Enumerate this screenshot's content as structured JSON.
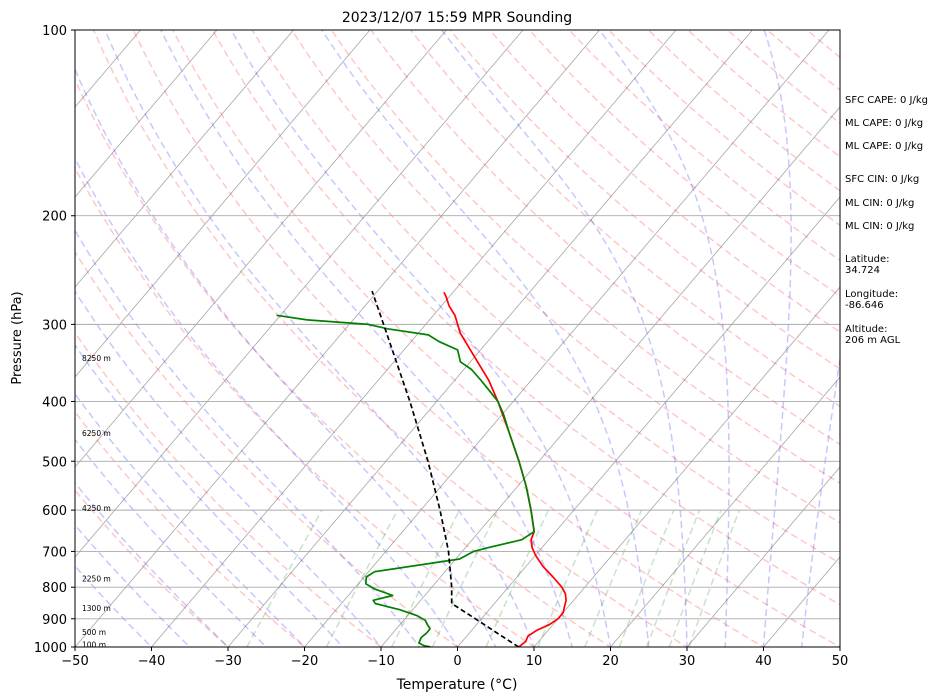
{
  "chart_data": {
    "type": "line",
    "title": "2023/12/07 15:59 MPR Sounding",
    "xlabel": "Temperature (°C)",
    "ylabel": "Pressure (hPa)",
    "xlim": [
      -50,
      50
    ],
    "ylim": [
      1000,
      100
    ],
    "y_scale": "log",
    "skew": true,
    "grid": true,
    "x_ticks": [
      -50,
      -40,
      -30,
      -20,
      -10,
      0,
      10,
      20,
      30,
      40,
      50
    ],
    "x_tick_labels": [
      "−50",
      "−40",
      "−30",
      "−20",
      "−10",
      "0",
      "10",
      "20",
      "30",
      "40",
      "50"
    ],
    "y_ticks": [
      1000,
      900,
      800,
      700,
      600,
      500,
      400,
      300,
      200,
      100
    ],
    "y_tick_labels": [
      "1000",
      "900",
      "800",
      "700",
      "600",
      "500",
      "400",
      "300",
      "200",
      "100"
    ],
    "series": [
      {
        "role": "temperature",
        "color": "#ff0000",
        "points": [
          [
            1000,
            8.0
          ],
          [
            980,
            8.3
          ],
          [
            960,
            8.0
          ],
          [
            940,
            8.5
          ],
          [
            920,
            9.5
          ],
          [
            900,
            10.0
          ],
          [
            880,
            10.0
          ],
          [
            860,
            9.5
          ],
          [
            840,
            9.0
          ],
          [
            820,
            8.2
          ],
          [
            800,
            7.0
          ],
          [
            770,
            4.7
          ],
          [
            740,
            2.2
          ],
          [
            710,
            0.0
          ],
          [
            690,
            -1.3
          ],
          [
            670,
            -2.3
          ],
          [
            650,
            -2.8
          ],
          [
            600,
            -5.6
          ],
          [
            550,
            -8.8
          ],
          [
            500,
            -12.6
          ],
          [
            450,
            -17.0
          ],
          [
            400,
            -22.0
          ],
          [
            370,
            -25.5
          ],
          [
            340,
            -29.8
          ],
          [
            310,
            -34.5
          ],
          [
            290,
            -37.2
          ],
          [
            280,
            -39.0
          ],
          [
            270,
            -40.5
          ],
          [
            266,
            -41.2
          ]
        ]
      },
      {
        "role": "dewpoint",
        "color": "#008000",
        "points": [
          [
            1000,
            -3.5
          ],
          [
            995,
            -4.5
          ],
          [
            985,
            -5.5
          ],
          [
            965,
            -5.8
          ],
          [
            950,
            -5.6
          ],
          [
            935,
            -5.6
          ],
          [
            920,
            -6.4
          ],
          [
            905,
            -7.2
          ],
          [
            890,
            -8.7
          ],
          [
            870,
            -11.7
          ],
          [
            850,
            -15.6
          ],
          [
            840,
            -16.2
          ],
          [
            825,
            -14.2
          ],
          [
            805,
            -17.3
          ],
          [
            790,
            -19.0
          ],
          [
            770,
            -19.7
          ],
          [
            755,
            -19.2
          ],
          [
            720,
            -9.5
          ],
          [
            700,
            -8.5
          ],
          [
            690,
            -7.0
          ],
          [
            670,
            -3.5
          ],
          [
            650,
            -2.8
          ],
          [
            600,
            -5.6
          ],
          [
            550,
            -8.8
          ],
          [
            500,
            -12.6
          ],
          [
            450,
            -17.0
          ],
          [
            420,
            -19.8
          ],
          [
            400,
            -22.0
          ],
          [
            385,
            -24.2
          ],
          [
            370,
            -26.5
          ],
          [
            355,
            -29.0
          ],
          [
            345,
            -31.3
          ],
          [
            330,
            -33.0
          ],
          [
            320,
            -36.3
          ],
          [
            312,
            -38.5
          ],
          [
            305,
            -44.5
          ],
          [
            300,
            -47.5
          ],
          [
            295,
            -56.0
          ],
          [
            290,
            -60.5
          ]
        ]
      },
      {
        "role": "parcel-profile",
        "color": "#000000",
        "style": "dashed",
        "points": [
          [
            1000,
            8.0
          ],
          [
            950,
            3.7
          ],
          [
            900,
            -0.8
          ],
          [
            850,
            -5.6
          ],
          [
            800,
            -7.4
          ],
          [
            700,
            -11.8
          ],
          [
            600,
            -17.5
          ],
          [
            500,
            -24.5
          ],
          [
            400,
            -33.5
          ],
          [
            300,
            -45.5
          ],
          [
            265,
            -50.7
          ]
        ]
      }
    ],
    "background_lines": {
      "dry_adiabats_color": "#ff0000",
      "moist_adiabats_color": "#0000ff",
      "mixing_ratio_color": "#008000",
      "isotherms_color": "#888888"
    },
    "height_labels": [
      {
        "text": "100 m",
        "pressure": 990
      },
      {
        "text": "500 m",
        "pressure": 945
      },
      {
        "text": "1300 m",
        "pressure": 865
      },
      {
        "text": "2250 m",
        "pressure": 775
      },
      {
        "text": "4250 m",
        "pressure": 595
      },
      {
        "text": "6250 m",
        "pressure": 450
      },
      {
        "text": "8250 m",
        "pressure": 340
      }
    ],
    "annotations": [
      {
        "text": "SFC CAPE: 0 J/kg",
        "line2": ""
      },
      {
        "text": "ML CAPE: 0 J/kg",
        "line2": ""
      },
      {
        "text": "ML CAPE: 0 J/kg",
        "line2": ""
      },
      {
        "text": "SFC CIN: 0 J/kg",
        "line2": ""
      },
      {
        "text": "ML CIN: 0 J/kg",
        "line2": ""
      },
      {
        "text": "ML CIN: 0 J/kg",
        "line2": ""
      },
      {
        "text": "Latitude:",
        "line2": "34.724"
      },
      {
        "text": "Longitude:",
        "line2": "-86.646"
      },
      {
        "text": "Altitude:",
        "line2": "206 m AGL"
      }
    ]
  }
}
